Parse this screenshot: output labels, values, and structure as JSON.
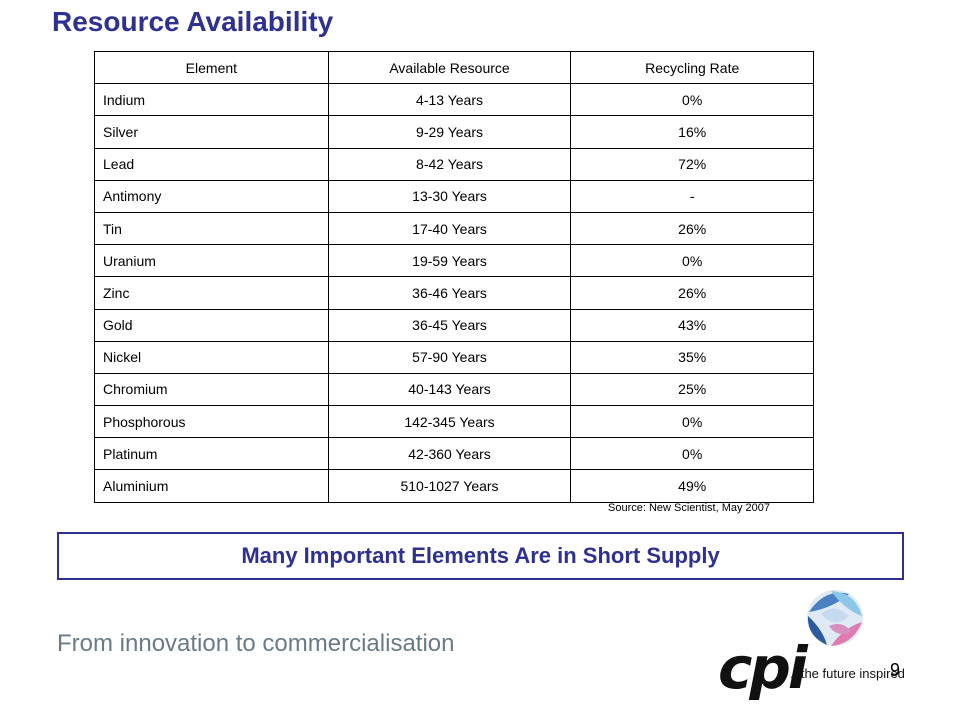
{
  "title": "Resource Availability",
  "table": {
    "headers": [
      "Element",
      "Available Resource",
      "Recycling Rate"
    ],
    "rows": [
      [
        "Indium",
        "4-13 Years",
        "0%"
      ],
      [
        "Silver",
        "9-29 Years",
        "16%"
      ],
      [
        "Lead",
        "8-42 Years",
        "72%"
      ],
      [
        "Antimony",
        "13-30 Years",
        "-"
      ],
      [
        "Tin",
        "17-40 Years",
        "26%"
      ],
      [
        "Uranium",
        "19-59 Years",
        "0%"
      ],
      [
        "Zinc",
        "36-46 Years",
        "26%"
      ],
      [
        "Gold",
        "36-45 Years",
        "43%"
      ],
      [
        "Nickel",
        "57-90 Years",
        "35%"
      ],
      [
        "Chromium",
        "40-143 Years",
        "25%"
      ],
      [
        "Phosphorous",
        "142-345 Years",
        "0%"
      ],
      [
        "Platinum",
        "42-360 Years",
        "0%"
      ],
      [
        "Aluminium",
        "510-1027 Years",
        "49%"
      ]
    ]
  },
  "source": "Source: New Scientist, May 2007",
  "banner": "Many Important Elements Are in Short Supply",
  "tagline": "From innovation to commercialisation",
  "page_number": "9",
  "logo": {
    "word": "cpi",
    "tagline": "...the future inspired",
    "icon": "globe-logo-icon",
    "colors": [
      "#4a7fc1",
      "#e07bb0",
      "#8cc7e8",
      "#2e5aa0"
    ]
  }
}
